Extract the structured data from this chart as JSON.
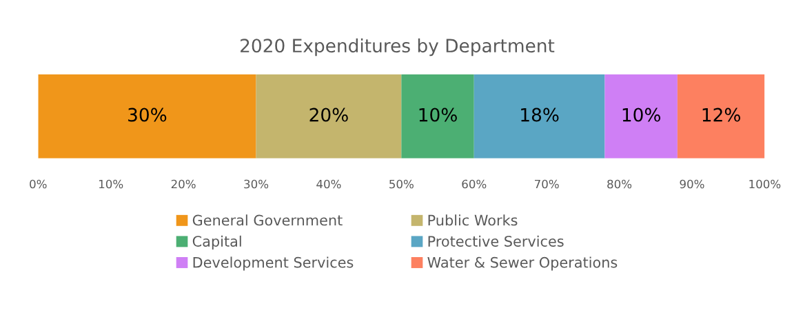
{
  "chart_data": {
    "type": "bar",
    "orientation": "horizontal",
    "stacked": true,
    "title": "2020 Expenditures by Department",
    "categories": [
      null
    ],
    "series": [
      {
        "name": "General Government",
        "color": "#f0961a",
        "values": [
          30
        ],
        "value_labels": [
          "30%"
        ]
      },
      {
        "name": "Public Works",
        "color": "#c4b56d",
        "values": [
          20
        ],
        "value_labels": [
          "20%"
        ]
      },
      {
        "name": "Capital",
        "color": "#4caf73",
        "values": [
          10
        ],
        "value_labels": [
          "10%"
        ]
      },
      {
        "name": "Protective Services",
        "color": "#5aa6c4",
        "values": [
          18
        ],
        "value_labels": [
          "18%"
        ]
      },
      {
        "name": "Development Services",
        "color": "#cf7ff5",
        "values": [
          10
        ],
        "value_labels": [
          "10%"
        ]
      },
      {
        "name": "Water & Sewer Operations",
        "color": "#fd8060",
        "values": [
          12
        ],
        "value_labels": [
          "12%"
        ]
      }
    ],
    "xlim": [
      0,
      100
    ],
    "xticks": [
      {
        "value": 0,
        "label": "0%"
      },
      {
        "value": 10,
        "label": "10%"
      },
      {
        "value": 20,
        "label": "20%"
      },
      {
        "value": 30,
        "label": "30%"
      },
      {
        "value": 40,
        "label": "40%"
      },
      {
        "value": 50,
        "label": "50%"
      },
      {
        "value": 60,
        "label": "60%"
      },
      {
        "value": 70,
        "label": "70%"
      },
      {
        "value": 80,
        "label": "80%"
      },
      {
        "value": 90,
        "label": "90%"
      },
      {
        "value": 100,
        "label": "100%"
      }
    ],
    "tick_labels": "x",
    "grid": false,
    "legend": "bottom"
  }
}
